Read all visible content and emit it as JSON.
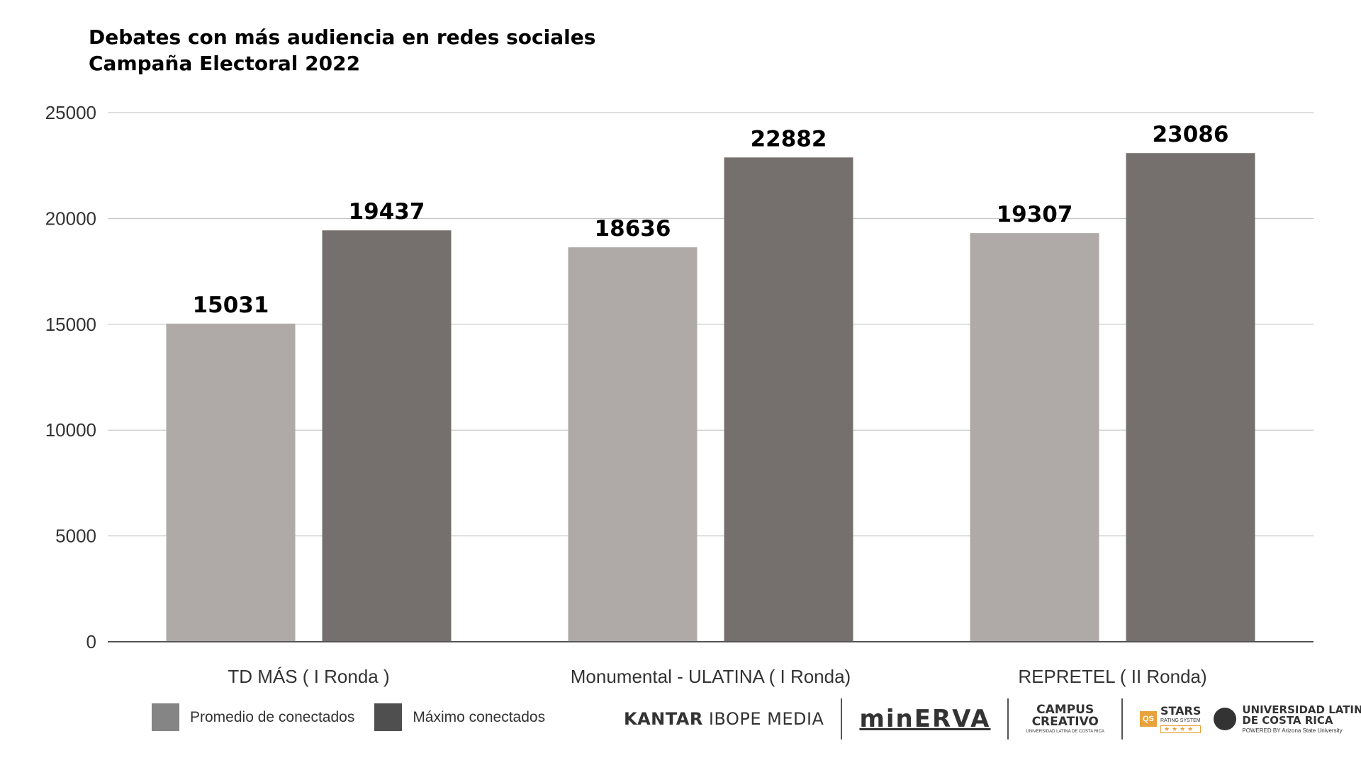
{
  "title": {
    "line1": "Debates con más audiencia en redes sociales",
    "line2": "Campaña Electoral 2022"
  },
  "colors": {
    "promedio": "#afaaa8",
    "maximo": "#75706e",
    "legend_promedio": "#858585",
    "legend_maximo": "#4f4f4f",
    "gridline": "#bdbdbd",
    "axis": "#555555",
    "text": "#333333"
  },
  "legend": [
    {
      "label": "Promedio de conectados"
    },
    {
      "label": "Máximo conectados"
    }
  ],
  "logos": {
    "kantar_bold": "KANTAR",
    "kantar_light": "IBOPE MEDIA",
    "minerva": "minERVA",
    "campus_line1": "CAMPUS",
    "campus_line2": "CREATIVO",
    "campus_small": "UNIVERSIDAD LATINA DE COSTA RICA",
    "qs_mark": "QS",
    "qs_stars": "STARS",
    "qs_rating": "RATING SYSTEM",
    "qs_starrow": "★★★★",
    "ulatina_line1": "UNIVERSIDAD LATINA",
    "ulatina_line2": "DE COSTA RICA",
    "ulatina_small": "POWERED BY Arizona State University"
  },
  "chart_data": {
    "type": "bar",
    "title": "",
    "xlabel": "",
    "ylabel": "",
    "categories": [
      "TD MÁS ( I Ronda )",
      "Monumental - ULATINA ( I Ronda)",
      "REPRETEL ( II Ronda)"
    ],
    "series": [
      {
        "name": "Promedio de conectados",
        "values": [
          15031,
          18636,
          19307
        ]
      },
      {
        "name": "Máximo conectados",
        "values": [
          19437,
          22882,
          23086
        ]
      }
    ],
    "ylim": [
      0,
      25000
    ],
    "yticks": [
      0,
      5000,
      10000,
      15000,
      20000,
      25000
    ],
    "grid": true,
    "legend_position": "bottom-left"
  }
}
